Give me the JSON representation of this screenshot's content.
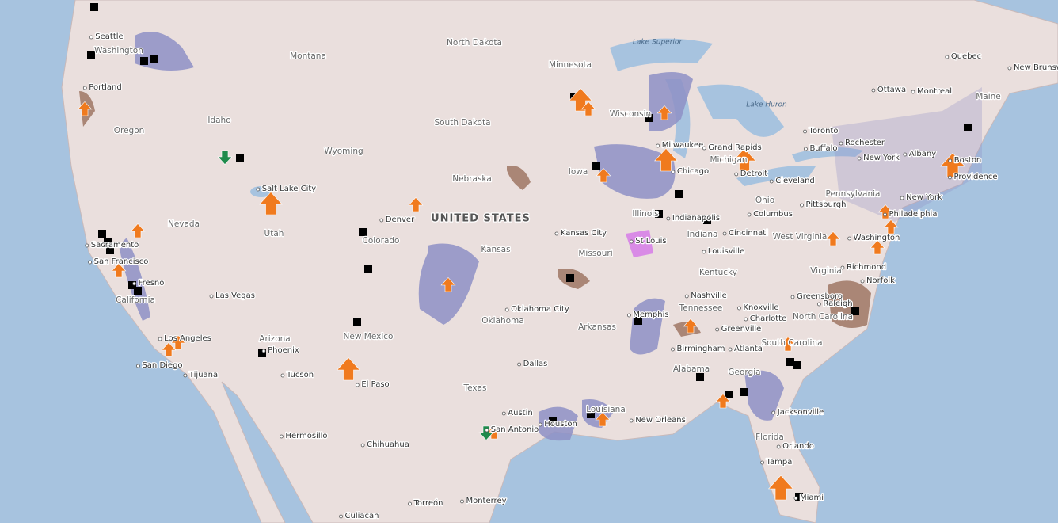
{
  "labels": [
    "North Dakota",
    "Montana",
    "Minnesota",
    "Lake Superior",
    "Quebec",
    "New Brunswick",
    "Maine",
    "Ottawa",
    "Montreal",
    "Seattle",
    "Washington",
    "Portland",
    "Oregon",
    "Idaho",
    "South Dakota",
    "Wisconsin",
    "Lake Huron",
    "Toronto",
    "Rochester",
    "Buffalo",
    "Albany",
    "Boston",
    "Providence",
    "New York",
    "Wyoming",
    "Milwaukee",
    "Grand Rapids",
    "Michigan",
    "Detroit",
    "Chicago",
    "Iowa",
    "Nebraska",
    "Salt Lake City",
    "Cleveland",
    "Ohio",
    "Pennsylvania",
    "New York",
    "Pittsburgh",
    "Philadelphia",
    "Denver",
    "UNITED STATES",
    "Illinois",
    "Indianapolis",
    "Columbus",
    "Nevada",
    "Kansas City",
    "Colorado",
    "Cincinnati",
    "Indiana",
    "West Virginia",
    "Washington",
    "Sacramento",
    "Utah",
    "Kansas",
    "St Louis",
    "Missouri",
    "Louisville",
    "San Francisco",
    "Richmond",
    "Virginia",
    "Kentucky",
    "Norfolk",
    "Fresno",
    "Nashville",
    "Greensboro",
    "Las Vegas",
    "California",
    "Knoxville",
    "Raleigh",
    "Memphis",
    "Tennessee",
    "Charlotte",
    "North Carolina",
    "Oklahoma City",
    "Oklahoma",
    "Arkansas",
    "Greenville",
    "Arizona",
    "New Mexico",
    "Los Angeles",
    "Birmingham",
    "Atlanta",
    "South Carolina",
    "Phoenix",
    "San Diego",
    "Dallas",
    "Tucson",
    "Tijuana",
    "El Paso",
    "Alabama",
    "Georgia",
    "Texas",
    "Louisiana",
    "Austin",
    "Houston",
    "Jacksonville",
    "San Antonio",
    "New Orleans",
    "Florida",
    "Hermosillo",
    "Chihuahua",
    "Orlando",
    "Tampa",
    "Miami",
    "Torreón",
    "Monterrey",
    "Culiacan"
  ]
}
